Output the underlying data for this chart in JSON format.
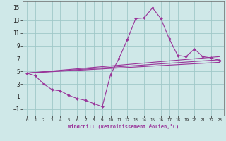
{
  "background_color": "#cfe8e8",
  "grid_color": "#a0c8c8",
  "line_color": "#993399",
  "xlabel": "Windchill (Refroidissement éolien,°C)",
  "xlim": [
    -0.5,
    23.5
  ],
  "ylim": [
    -2.0,
    16.0
  ],
  "xticks": [
    0,
    1,
    2,
    3,
    4,
    5,
    6,
    7,
    8,
    9,
    10,
    11,
    12,
    13,
    14,
    15,
    16,
    17,
    18,
    19,
    20,
    21,
    22,
    23
  ],
  "yticks": [
    -1,
    1,
    3,
    5,
    7,
    9,
    11,
    13,
    15
  ],
  "line1_x": [
    0,
    1,
    2,
    3,
    4,
    5,
    6,
    7,
    8,
    9,
    10,
    11,
    12,
    13,
    14,
    15,
    16,
    17,
    18,
    19,
    20,
    21,
    22,
    23
  ],
  "line1_y": [
    4.7,
    4.3,
    3.0,
    2.1,
    1.9,
    1.2,
    0.7,
    0.4,
    -0.1,
    -0.6,
    4.5,
    7.0,
    10.0,
    13.3,
    13.4,
    15.0,
    13.3,
    10.1,
    7.5,
    7.3,
    8.5,
    7.3,
    7.1,
    6.7
  ],
  "line2_x": [
    0,
    23
  ],
  "line2_y": [
    4.7,
    6.8
  ],
  "line3_x": [
    0,
    23
  ],
  "line3_y": [
    4.7,
    7.3
  ],
  "line4_x": [
    0,
    23
  ],
  "line4_y": [
    4.7,
    6.4
  ]
}
